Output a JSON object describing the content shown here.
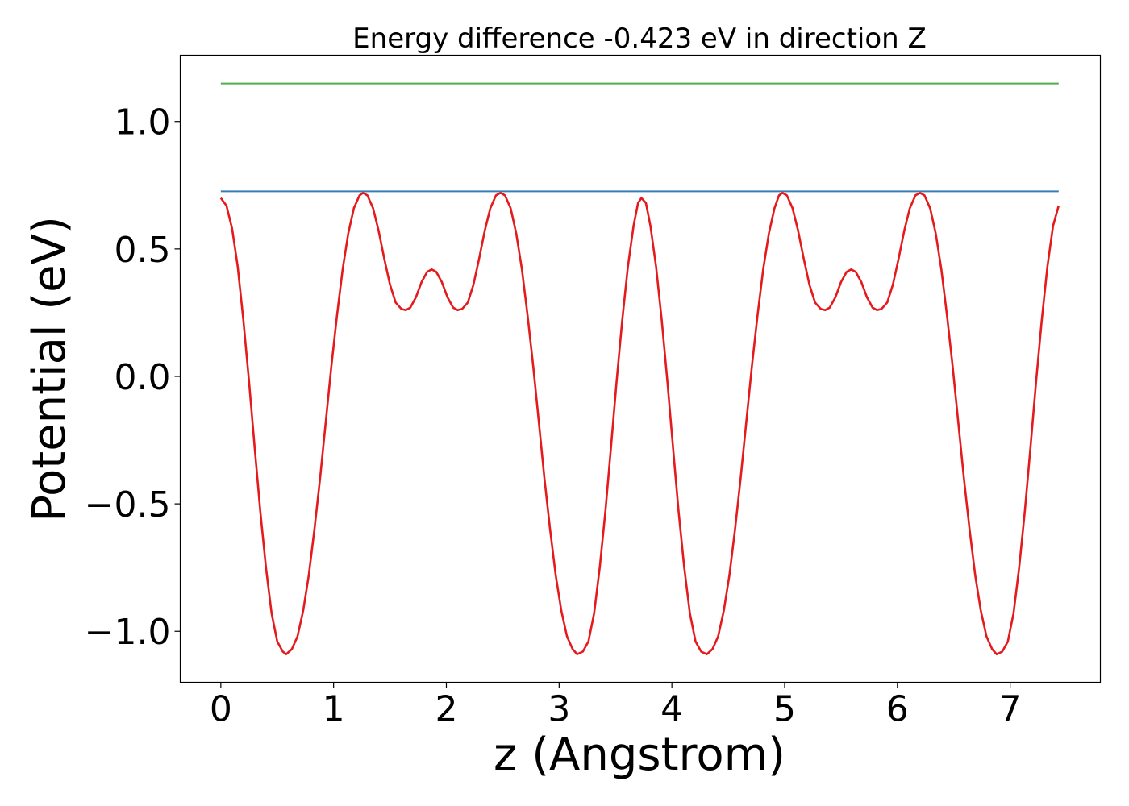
{
  "chart_data": {
    "type": "line",
    "title": "Energy difference -0.423 eV in direction Z",
    "xlabel": "z (Angstrom)",
    "ylabel": "Potential (eV)",
    "xlim": [
      -0.36,
      7.8
    ],
    "ylim": [
      -1.2,
      1.26
    ],
    "xticks": [
      0,
      1,
      2,
      3,
      4,
      5,
      6,
      7
    ],
    "yticks": [
      -1.0,
      -0.5,
      0.0,
      0.5,
      1.0
    ],
    "ytick_labels": [
      "−1.0",
      "−0.5",
      "0.0",
      "0.5",
      "1.0"
    ],
    "grid": false,
    "series": [
      {
        "color": "#e41a1c",
        "style": "solid",
        "points": [
          [
            0.0,
            0.7
          ],
          [
            0.05,
            0.67
          ],
          [
            0.1,
            0.58
          ],
          [
            0.15,
            0.43
          ],
          [
            0.2,
            0.22
          ],
          [
            0.25,
            -0.02
          ],
          [
            0.3,
            -0.28
          ],
          [
            0.35,
            -0.53
          ],
          [
            0.4,
            -0.75
          ],
          [
            0.45,
            -0.93
          ],
          [
            0.5,
            -1.04
          ],
          [
            0.55,
            -1.08
          ],
          [
            0.58,
            -1.09
          ],
          [
            0.63,
            -1.07
          ],
          [
            0.68,
            -1.02
          ],
          [
            0.73,
            -0.92
          ],
          [
            0.78,
            -0.78
          ],
          [
            0.83,
            -0.6
          ],
          [
            0.88,
            -0.4
          ],
          [
            0.93,
            -0.18
          ],
          [
            0.98,
            0.04
          ],
          [
            1.03,
            0.24
          ],
          [
            1.08,
            0.42
          ],
          [
            1.13,
            0.56
          ],
          [
            1.18,
            0.66
          ],
          [
            1.23,
            0.71
          ],
          [
            1.26,
            0.72
          ],
          [
            1.3,
            0.71
          ],
          [
            1.35,
            0.66
          ],
          [
            1.4,
            0.57
          ],
          [
            1.45,
            0.46
          ],
          [
            1.5,
            0.36
          ],
          [
            1.55,
            0.29
          ],
          [
            1.6,
            0.265
          ],
          [
            1.64,
            0.26
          ],
          [
            1.68,
            0.27
          ],
          [
            1.73,
            0.31
          ],
          [
            1.78,
            0.37
          ],
          [
            1.83,
            0.41
          ],
          [
            1.87,
            0.42
          ],
          [
            1.91,
            0.41
          ],
          [
            1.96,
            0.37
          ],
          [
            2.01,
            0.31
          ],
          [
            2.06,
            0.27
          ],
          [
            2.1,
            0.26
          ],
          [
            2.14,
            0.265
          ],
          [
            2.19,
            0.29
          ],
          [
            2.24,
            0.36
          ],
          [
            2.29,
            0.46
          ],
          [
            2.34,
            0.57
          ],
          [
            2.39,
            0.66
          ],
          [
            2.44,
            0.71
          ],
          [
            2.48,
            0.72
          ],
          [
            2.52,
            0.71
          ],
          [
            2.57,
            0.66
          ],
          [
            2.62,
            0.56
          ],
          [
            2.67,
            0.42
          ],
          [
            2.72,
            0.24
          ],
          [
            2.77,
            0.04
          ],
          [
            2.82,
            -0.18
          ],
          [
            2.87,
            -0.4
          ],
          [
            2.92,
            -0.6
          ],
          [
            2.97,
            -0.78
          ],
          [
            3.02,
            -0.92
          ],
          [
            3.07,
            -1.02
          ],
          [
            3.12,
            -1.07
          ],
          [
            3.16,
            -1.09
          ],
          [
            3.21,
            -1.08
          ],
          [
            3.26,
            -1.04
          ],
          [
            3.31,
            -0.93
          ],
          [
            3.36,
            -0.75
          ],
          [
            3.41,
            -0.53
          ],
          [
            3.46,
            -0.28
          ],
          [
            3.51,
            -0.02
          ],
          [
            3.56,
            0.22
          ],
          [
            3.61,
            0.43
          ],
          [
            3.66,
            0.59
          ],
          [
            3.7,
            0.68
          ],
          [
            3.73,
            0.7
          ],
          [
            3.77,
            0.68
          ],
          [
            3.81,
            0.59
          ],
          [
            3.86,
            0.43
          ],
          [
            3.91,
            0.22
          ],
          [
            3.96,
            -0.02
          ],
          [
            4.01,
            -0.28
          ],
          [
            4.06,
            -0.53
          ],
          [
            4.11,
            -0.75
          ],
          [
            4.16,
            -0.93
          ],
          [
            4.21,
            -1.04
          ],
          [
            4.26,
            -1.08
          ],
          [
            4.31,
            -1.09
          ],
          [
            4.36,
            -1.07
          ],
          [
            4.41,
            -1.02
          ],
          [
            4.46,
            -0.92
          ],
          [
            4.51,
            -0.78
          ],
          [
            4.56,
            -0.6
          ],
          [
            4.61,
            -0.4
          ],
          [
            4.66,
            -0.18
          ],
          [
            4.71,
            0.04
          ],
          [
            4.76,
            0.24
          ],
          [
            4.81,
            0.42
          ],
          [
            4.86,
            0.56
          ],
          [
            4.91,
            0.66
          ],
          [
            4.95,
            0.71
          ],
          [
            4.98,
            0.72
          ],
          [
            5.02,
            0.71
          ],
          [
            5.07,
            0.66
          ],
          [
            5.12,
            0.57
          ],
          [
            5.17,
            0.46
          ],
          [
            5.22,
            0.36
          ],
          [
            5.27,
            0.29
          ],
          [
            5.32,
            0.265
          ],
          [
            5.36,
            0.26
          ],
          [
            5.4,
            0.27
          ],
          [
            5.45,
            0.31
          ],
          [
            5.5,
            0.37
          ],
          [
            5.55,
            0.41
          ],
          [
            5.59,
            0.42
          ],
          [
            5.63,
            0.41
          ],
          [
            5.68,
            0.37
          ],
          [
            5.73,
            0.31
          ],
          [
            5.78,
            0.27
          ],
          [
            5.82,
            0.26
          ],
          [
            5.86,
            0.265
          ],
          [
            5.91,
            0.29
          ],
          [
            5.96,
            0.36
          ],
          [
            6.01,
            0.46
          ],
          [
            6.06,
            0.57
          ],
          [
            6.11,
            0.66
          ],
          [
            6.16,
            0.71
          ],
          [
            6.2,
            0.72
          ],
          [
            6.24,
            0.71
          ],
          [
            6.29,
            0.66
          ],
          [
            6.34,
            0.56
          ],
          [
            6.39,
            0.42
          ],
          [
            6.44,
            0.24
          ],
          [
            6.49,
            0.04
          ],
          [
            6.54,
            -0.18
          ],
          [
            6.59,
            -0.4
          ],
          [
            6.64,
            -0.6
          ],
          [
            6.69,
            -0.78
          ],
          [
            6.74,
            -0.92
          ],
          [
            6.79,
            -1.02
          ],
          [
            6.84,
            -1.07
          ],
          [
            6.88,
            -1.09
          ],
          [
            6.93,
            -1.08
          ],
          [
            6.98,
            -1.04
          ],
          [
            7.03,
            -0.93
          ],
          [
            7.08,
            -0.75
          ],
          [
            7.13,
            -0.53
          ],
          [
            7.18,
            -0.28
          ],
          [
            7.23,
            -0.02
          ],
          [
            7.28,
            0.22
          ],
          [
            7.33,
            0.43
          ],
          [
            7.38,
            0.59
          ],
          [
            7.43,
            0.67
          ]
        ]
      },
      {
        "color": "#377eb8",
        "style": "solid",
        "points": [
          [
            0.0,
            0.726
          ],
          [
            7.43,
            0.726
          ]
        ]
      },
      {
        "color": "#4daf4a",
        "style": "solid",
        "points": [
          [
            0.0,
            1.149
          ],
          [
            7.43,
            1.149
          ]
        ]
      }
    ]
  }
}
